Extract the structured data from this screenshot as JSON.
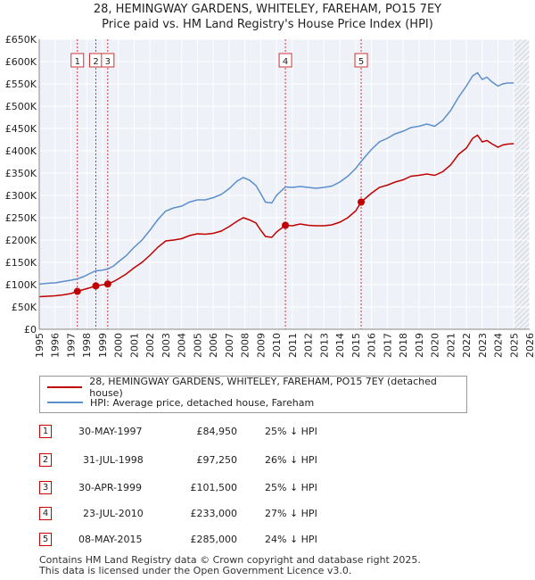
{
  "title_line1": "28, HEMINGWAY GARDENS, WHITELEY, FAREHAM, PO15 7EY",
  "title_line2": "Price paid vs. HM Land Registry's House Price Index (HPI)",
  "colors": {
    "property": "#c00000",
    "hpi": "#5b8fcc",
    "marker_line": "#cc3333",
    "future": "#cccccc"
  },
  "legend": [
    {
      "label": "28, HEMINGWAY GARDENS, WHITELEY, FAREHAM, PO15 7EY (detached house)",
      "color": "#c00000"
    },
    {
      "label": "HPI: Average price, detached house, Fareham",
      "color": "#5b8fcc"
    }
  ],
  "transactions": [
    {
      "num": "1",
      "date": "30-MAY-1997",
      "price": "£84,950",
      "hpi": "25% ↓ HPI"
    },
    {
      "num": "2",
      "date": "31-JUL-1998",
      "price": "£97,250",
      "hpi": "26% ↓ HPI"
    },
    {
      "num": "3",
      "date": "30-APR-1999",
      "price": "£101,500",
      "hpi": "25% ↓ HPI"
    },
    {
      "num": "4",
      "date": "23-JUL-2010",
      "price": "£233,000",
      "hpi": "27% ↓ HPI"
    },
    {
      "num": "5",
      "date": "08-MAY-2015",
      "price": "£285,000",
      "hpi": "24% ↓ HPI"
    }
  ],
  "footer_line1": "Contains HM Land Registry data © Crown copyright and database right 2025.",
  "footer_line2": "This data is licensed under the Open Government Licence v3.0.",
  "chart_data": {
    "type": "line",
    "title": "28, HEMINGWAY GARDENS, WHITELEY, FAREHAM, PO15 7EY",
    "subtitle": "Price paid vs. HM Land Registry's House Price Index (HPI)",
    "xlim": [
      1995,
      2026
    ],
    "ylim": [
      0,
      650000
    ],
    "xticks": [
      1995,
      1996,
      1997,
      1998,
      1999,
      2000,
      2001,
      2002,
      2003,
      2004,
      2005,
      2006,
      2007,
      2008,
      2009,
      2010,
      2011,
      2012,
      2013,
      2014,
      2015,
      2016,
      2017,
      2018,
      2019,
      2020,
      2021,
      2022,
      2023,
      2024,
      2025,
      2026
    ],
    "yticks": [
      {
        "v": 0,
        "label": "£0"
      },
      {
        "v": 50000,
        "label": "£50K"
      },
      {
        "v": 100000,
        "label": "£100K"
      },
      {
        "v": 150000,
        "label": "£150K"
      },
      {
        "v": 200000,
        "label": "£200K"
      },
      {
        "v": 250000,
        "label": "£250K"
      },
      {
        "v": 300000,
        "label": "£300K"
      },
      {
        "v": 350000,
        "label": "£350K"
      },
      {
        "v": 400000,
        "label": "£400K"
      },
      {
        "v": 450000,
        "label": "£450K"
      },
      {
        "v": 500000,
        "label": "£500K"
      },
      {
        "v": 550000,
        "label": "£550K"
      },
      {
        "v": 600000,
        "label": "£600K"
      },
      {
        "v": 650000,
        "label": "£650K"
      }
    ],
    "grid": true,
    "legend_position": "bottom",
    "forecast_from": 2025.0,
    "series": [
      {
        "name": "28, HEMINGWAY GARDENS, WHITELEY, FAREHAM, PO15 7EY (detached house)",
        "x": [
          1995.0,
          1995.5,
          1996.0,
          1996.5,
          1997.0,
          1997.41,
          1997.8,
          1998.2,
          1998.58,
          1998.9,
          1999.33,
          1999.7,
          2000.0,
          2000.5,
          2001.0,
          2001.5,
          2002.0,
          2002.5,
          2003.0,
          2003.5,
          2004.0,
          2004.5,
          2005.0,
          2005.5,
          2006.0,
          2006.5,
          2007.0,
          2007.5,
          2007.9,
          2008.3,
          2008.7,
          2009.0,
          2009.3,
          2009.7,
          2010.0,
          2010.56,
          2011.0,
          2011.5,
          2012.0,
          2012.5,
          2013.0,
          2013.5,
          2014.0,
          2014.5,
          2015.0,
          2015.35,
          2015.7,
          2016.0,
          2016.5,
          2017.0,
          2017.5,
          2018.0,
          2018.5,
          2019.0,
          2019.5,
          2020.0,
          2020.5,
          2021.0,
          2021.5,
          2022.0,
          2022.4,
          2022.7,
          2023.0,
          2023.3,
          2023.6,
          2024.0,
          2024.3,
          2024.6,
          2025.0
        ],
        "values": [
          73000,
          74000,
          75000,
          77000,
          80000,
          84950,
          89000,
          93000,
          97250,
          99000,
          101500,
          107000,
          113000,
          124000,
          138000,
          150000,
          166000,
          184000,
          198000,
          200000,
          203000,
          210000,
          214000,
          213000,
          215000,
          220000,
          230000,
          242000,
          250000,
          245000,
          238000,
          222000,
          208000,
          206000,
          218000,
          233000,
          232000,
          236000,
          233000,
          232000,
          232000,
          234000,
          240000,
          250000,
          265000,
          285000,
          296000,
          305000,
          318000,
          323000,
          330000,
          335000,
          343000,
          345000,
          348000,
          345000,
          353000,
          368000,
          392000,
          406000,
          428000,
          435000,
          420000,
          423000,
          416000,
          408000,
          413000,
          415000,
          416000
        ]
      },
      {
        "name": "HPI: Average price, detached house, Fareham",
        "x": [
          1995.0,
          1995.5,
          1996.0,
          1996.5,
          1997.0,
          1997.41,
          1997.8,
          1998.2,
          1998.58,
          1998.9,
          1999.33,
          1999.7,
          2000.0,
          2000.5,
          2001.0,
          2001.5,
          2002.0,
          2002.5,
          2003.0,
          2003.5,
          2004.0,
          2004.5,
          2005.0,
          2005.5,
          2006.0,
          2006.5,
          2007.0,
          2007.5,
          2007.9,
          2008.3,
          2008.7,
          2009.0,
          2009.3,
          2009.7,
          2010.0,
          2010.56,
          2011.0,
          2011.5,
          2012.0,
          2012.5,
          2013.0,
          2013.5,
          2014.0,
          2014.5,
          2015.0,
          2015.35,
          2015.7,
          2016.0,
          2016.5,
          2017.0,
          2017.5,
          2018.0,
          2018.5,
          2019.0,
          2019.5,
          2020.0,
          2020.5,
          2021.0,
          2021.5,
          2022.0,
          2022.4,
          2022.7,
          2023.0,
          2023.3,
          2023.6,
          2024.0,
          2024.3,
          2024.6,
          2025.0
        ],
        "values": [
          101000,
          103000,
          104000,
          107000,
          110000,
          113000,
          118000,
          125000,
          131000,
          132000,
          135000,
          142000,
          151000,
          165000,
          184000,
          200000,
          222000,
          246000,
          265000,
          272000,
          276000,
          285000,
          290000,
          290000,
          295000,
          302000,
          315000,
          332000,
          340000,
          334000,
          322000,
          304000,
          285000,
          283000,
          300000,
          319000,
          318000,
          320000,
          318000,
          316000,
          318000,
          321000,
          330000,
          343000,
          360000,
          376000,
          391000,
          403000,
          420000,
          428000,
          438000,
          444000,
          452000,
          455000,
          460000,
          455000,
          468000,
          490000,
          520000,
          545000,
          568000,
          575000,
          560000,
          565000,
          555000,
          545000,
          550000,
          552000,
          552000
        ]
      }
    ],
    "markers": [
      {
        "label": "1",
        "x": 1997.41,
        "y": 84950
      },
      {
        "label": "2",
        "x": 1998.58,
        "y": 97250
      },
      {
        "label": "3",
        "x": 1999.33,
        "y": 101500
      },
      {
        "label": "4",
        "x": 2010.56,
        "y": 233000
      },
      {
        "label": "5",
        "x": 2015.35,
        "y": 285000
      }
    ]
  }
}
